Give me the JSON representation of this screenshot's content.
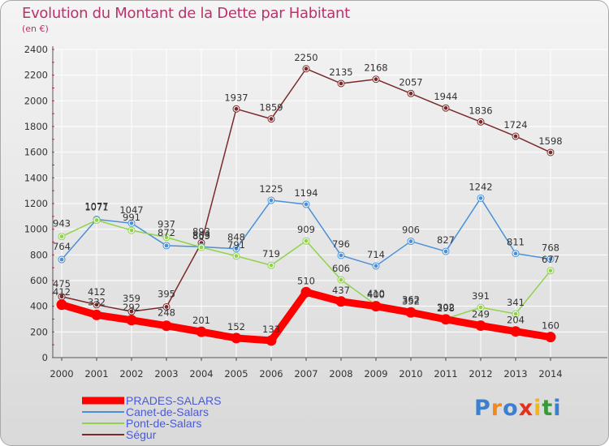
{
  "header": {
    "title": "Evolution du Montant de la Dette par Habitant",
    "subtitle": "(en €)"
  },
  "brand": {
    "text": "Proxiti",
    "letters": [
      "P",
      "r",
      "o",
      "x",
      "i",
      "t",
      "i"
    ],
    "colors": [
      "#3b7fd0",
      "#f08a1c",
      "#3b7fd0",
      "#e2321f",
      "#f2b51a",
      "#3a9a3a",
      "#3b7fd0"
    ]
  },
  "chart_data": {
    "type": "line",
    "title": "Evolution du Montant de la Dette par Habitant",
    "subtitle": "(en €)",
    "xlabel": "",
    "ylabel": "",
    "ylim": [
      0,
      2400
    ],
    "yticks": [
      0,
      200,
      400,
      600,
      800,
      1000,
      1200,
      1400,
      1600,
      1800,
      2000,
      2200,
      2400
    ],
    "grid": true,
    "legend_position": "bottom-left",
    "categories": [
      "2000",
      "2001",
      "2002",
      "2003",
      "2004",
      "2005",
      "2006",
      "2007",
      "2008",
      "2009",
      "2010",
      "2011",
      "2012",
      "2013",
      "2014"
    ],
    "series": [
      {
        "name": "PRADES-SALARS",
        "color": "#ff0000",
        "values": [
          412,
          332,
          292,
          248,
          201,
          152,
          133,
          510,
          437,
          400,
          352,
          298,
          249,
          204,
          160
        ],
        "labels": [
          "412",
          "332",
          "292",
          "248",
          "201",
          "152",
          "133",
          "510",
          "437",
          "400",
          "352",
          "298",
          "249",
          "204",
          "160"
        ]
      },
      {
        "name": "Canet-de-Salars",
        "color": "#4a90d9",
        "values": [
          764,
          1077,
          1047,
          872,
          863,
          848,
          1225,
          1194,
          796,
          714,
          906,
          827,
          1242,
          811,
          768
        ],
        "labels": [
          "764",
          "1077",
          "1047",
          "872",
          "863",
          "848",
          "1225",
          "1194",
          "796",
          "714",
          "906",
          "827",
          "1242",
          "811",
          "768"
        ]
      },
      {
        "name": "Pont-de-Salars",
        "color": "#8fd34a",
        "values": [
          943,
          1071,
          991,
          937,
          859,
          791,
          719,
          909,
          606,
          410,
          362,
          302,
          391,
          341,
          677
        ],
        "labels": [
          "943",
          "1071",
          "991",
          "937",
          "859",
          "791",
          "719",
          "909",
          "606",
          "410",
          "362",
          "302",
          "391",
          "341",
          "677"
        ]
      },
      {
        "name": "Ségur",
        "color": "#7a2a2a",
        "values": [
          475,
          412,
          359,
          395,
          893,
          1937,
          1859,
          2250,
          2135,
          2168,
          2057,
          1944,
          1836,
          1724,
          1598
        ],
        "labels": [
          "475",
          "412",
          "359",
          "395",
          "893",
          "1937",
          "1859",
          "2250",
          "2135",
          "2168",
          "2057",
          "1944",
          "1836",
          "1724",
          "1598"
        ]
      }
    ]
  }
}
